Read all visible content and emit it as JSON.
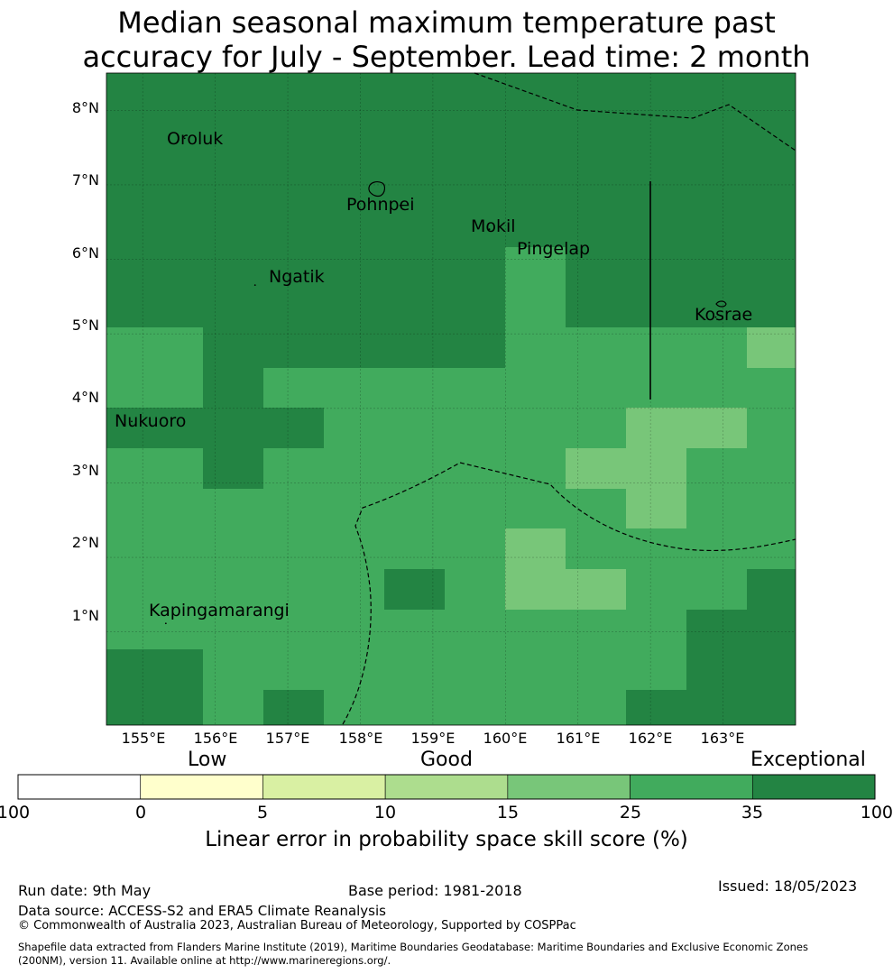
{
  "title_line1": "Median seasonal maximum temperature past",
  "title_line2": "accuracy for July - September. Lead time: 2 month",
  "map": {
    "lon_range": [
      154.5,
      164.0
    ],
    "lat_range": [
      -0.25,
      8.5
    ],
    "lat_ticks": [
      {
        "value": 8,
        "label": "8°N"
      },
      {
        "value": 7,
        "label": "7°N"
      },
      {
        "value": 6,
        "label": "6°N"
      },
      {
        "value": 5,
        "label": "5°N"
      },
      {
        "value": 4,
        "label": "4°N"
      },
      {
        "value": 3,
        "label": "3°N"
      },
      {
        "value": 2,
        "label": "2°N"
      },
      {
        "value": 1,
        "label": "1°N"
      }
    ],
    "lon_ticks": [
      {
        "value": 155,
        "label": "155°E"
      },
      {
        "value": 156,
        "label": "156°E"
      },
      {
        "value": 157,
        "label": "157°E"
      },
      {
        "value": 158,
        "label": "158°E"
      },
      {
        "value": 159,
        "label": "159°E"
      },
      {
        "value": 160,
        "label": "160°E"
      },
      {
        "value": 161,
        "label": "161°E"
      },
      {
        "value": 162,
        "label": "162°E"
      },
      {
        "value": 163,
        "label": "163°E"
      }
    ],
    "places": [
      {
        "name": "Oroluk",
        "lon": 155.33,
        "lat": 7.6
      },
      {
        "name": "Pohnpei",
        "lon": 158.3,
        "lat": 6.7
      },
      {
        "name": "Mokil",
        "lon": 159.53,
        "lat": 6.38
      },
      {
        "name": "Pingelap",
        "lon": 160.8,
        "lat": 6.07
      },
      {
        "name": "Ngatik",
        "lon": 156.3,
        "lat": 5.63
      },
      {
        "name": "Kosrae",
        "lon": 162.65,
        "lat": 5.2
      },
      {
        "name": "Nukuoro",
        "lon": 154.6,
        "lat": 3.8
      },
      {
        "name": "Kapingamarangi",
        "lon": 155.07,
        "lat": 1.09
      }
    ]
  },
  "colorbar": {
    "category_labels": [
      "Low",
      "Good",
      "Exceptional"
    ],
    "ticks": [
      "-100",
      "0",
      "5",
      "10",
      "15",
      "25",
      "35",
      "100"
    ],
    "colors": [
      "#ffffff",
      "#ffffcc",
      "#d9f0a3",
      "#addd8e",
      "#78c679",
      "#41ab5d",
      "#238443"
    ],
    "title": "Linear error in probability space skill score (%)"
  },
  "footer": {
    "run_date": "Run date: 9th May",
    "base_period": "Base period: 1981-2018",
    "issued": "Issued: 18/05/2023",
    "data_source": "Data source: ACCESS-S2 and ERA5 Climate Reanalysis",
    "copyright": "© Commonwealth of Australia 2023, Australian Bureau of Meteorology, Supported by COSPPac",
    "shapefile_line1": "Shapefile data extracted from Flanders Marine Institute (2019), Maritime Boundaries Geodatabase: Maritime Boundaries and Exclusive Economic Zones",
    "shapefile_line2": "(200NM), version 11. Available online at http://www.marineregions.org/."
  }
}
